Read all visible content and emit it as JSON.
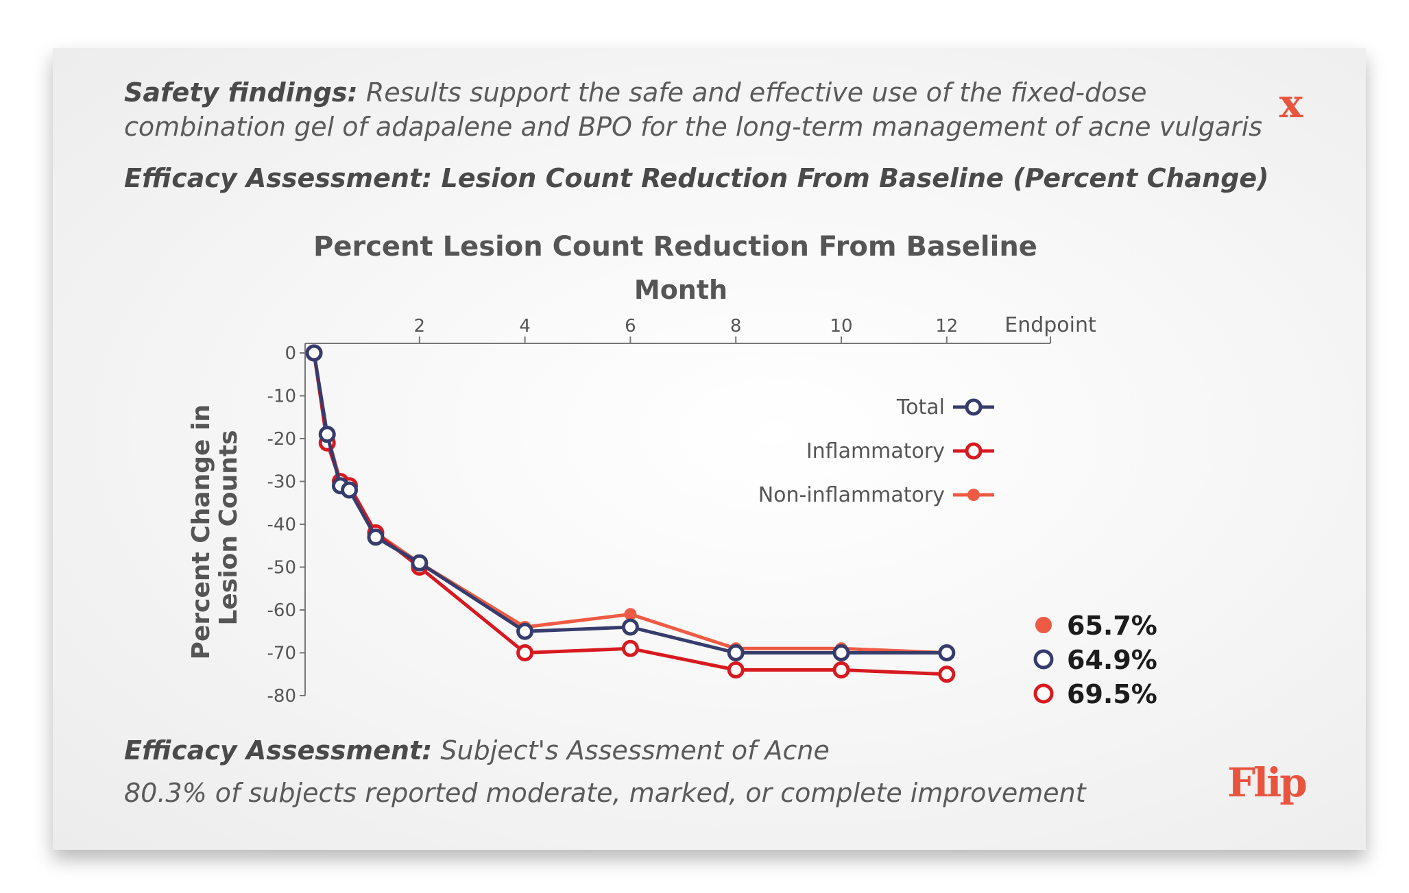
{
  "header": {
    "safety_label": "Safety findings:",
    "safety_text_line1": "Results support the safe and effective use of the fixed-dose",
    "safety_text_line2": "combination gel of adapalene and BPO for the long-term management of acne vulgaris",
    "efficacy_heading": "Efficacy Assessment: Lesion Count Reduction From Baseline (Percent Change)",
    "close_label": "x"
  },
  "footer": {
    "efficacy_label": "Efficacy Assessment:",
    "efficacy_text": "Subject's Assessment of Acne",
    "result_text": "80.3% of subjects reported moderate, marked, or complete improvement",
    "logo": "Flip"
  },
  "colors": {
    "total": "#363c6b",
    "inflammatory": "#d71920",
    "non_inflammatory": "#ee5a43",
    "accent": "#e8543e",
    "axis": "#777777"
  },
  "chart_data": {
    "type": "line",
    "title": "Percent Lesion Count Reduction From Baseline",
    "xlabel": "Month",
    "ylabel": "Percent Change in Lesion Counts",
    "x_ticks": [
      "2",
      "4",
      "6",
      "8",
      "10",
      "12",
      "Endpoint"
    ],
    "y_ticks": [
      "0",
      "-10",
      "-20",
      "-30",
      "-40",
      "-50",
      "-60",
      "-70",
      "-80"
    ],
    "xlim": [
      0,
      13.5
    ],
    "ylim": [
      -80,
      0
    ],
    "x": [
      0,
      0.25,
      0.5,
      0.67,
      1.17,
      2,
      4,
      6,
      8,
      10,
      12
    ],
    "series": [
      {
        "name": "Non-inflammatory",
        "values": [
          0,
          -19,
          -30,
          -32,
          -42,
          -49,
          -64,
          -61,
          -69,
          -69,
          -70
        ]
      },
      {
        "name": "Inflammatory",
        "values": [
          0,
          -21,
          -30,
          -31,
          -42,
          -50,
          -70,
          -69,
          -74,
          -74,
          -75
        ]
      },
      {
        "name": "Total",
        "values": [
          0,
          -19,
          -31,
          -32,
          -43,
          -49,
          -65,
          -64,
          -70,
          -70,
          -70
        ]
      }
    ],
    "legend": {
      "position": "top-right",
      "order": [
        "Total",
        "Inflammatory",
        "Non-inflammatory"
      ]
    },
    "endpoint_values": [
      {
        "series": "Non-inflammatory",
        "label": "65.7%"
      },
      {
        "series": "Total",
        "label": "64.9%"
      },
      {
        "series": "Inflammatory",
        "label": "69.5%"
      }
    ],
    "grid": false
  }
}
